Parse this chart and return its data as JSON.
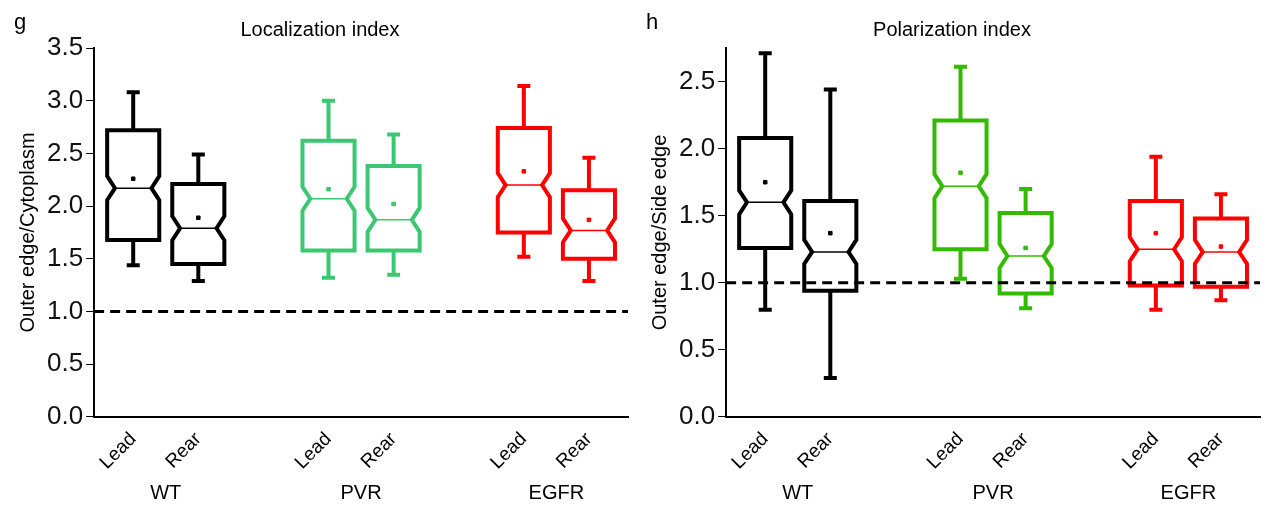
{
  "chart_data": [
    {
      "type": "box",
      "title": "Localization index",
      "ylabel": "Outer edge/Cytoplasm",
      "annotations": [
        "g",
        "WT",
        "PVR",
        "EGFR"
      ],
      "categories": [
        "Lead",
        "Rear",
        "Lead",
        "Rear",
        "Lead",
        "Rear"
      ],
      "colors": [
        "#000000",
        "#000000",
        "#3cc872",
        "#3cc872",
        "#ff0000",
        "#ff0000"
      ],
      "boxes": [
        {
          "low": 1.44,
          "q1": 1.68,
          "median": 2.17,
          "q3": 2.72,
          "high": 3.08,
          "mean": 2.26
        },
        {
          "low": 1.29,
          "q1": 1.45,
          "median": 1.79,
          "q3": 2.21,
          "high": 2.49,
          "mean": 1.89
        },
        {
          "low": 1.32,
          "q1": 1.58,
          "median": 2.07,
          "q3": 2.62,
          "high": 3.0,
          "mean": 2.16
        },
        {
          "low": 1.35,
          "q1": 1.58,
          "median": 1.87,
          "q3": 2.38,
          "high": 2.68,
          "mean": 2.02
        },
        {
          "low": 1.52,
          "q1": 1.75,
          "median": 2.2,
          "q3": 2.74,
          "high": 3.14,
          "mean": 2.33
        },
        {
          "low": 1.29,
          "q1": 1.5,
          "median": 1.77,
          "q3": 2.15,
          "high": 2.46,
          "mean": 1.87
        }
      ],
      "ylim": [
        0,
        3.5
      ],
      "yticks": [
        {
          "value": 0,
          "label": "0.0"
        },
        0.5,
        {
          "value": 1,
          "label": "1.0"
        },
        1.5,
        {
          "value": 2,
          "label": "2.0"
        },
        2.5,
        {
          "value": 3,
          "label": "3.0"
        },
        3.5
      ],
      "ref_lines": [
        {
          "axis": "y",
          "value": 1,
          "color": "#000000",
          "line_style": "dashed"
        }
      ],
      "grid": false,
      "legend": false,
      "marker": "square"
    },
    {
      "type": "box",
      "title": "Polarization index",
      "ylabel": "Outer edge/Side edge",
      "annotations": [
        "h",
        "WT",
        "PVR",
        "EGFR"
      ],
      "categories": [
        "Lead",
        "Rear",
        "Lead",
        "Rear",
        "Lead",
        "Rear"
      ],
      "colors": [
        "#000000",
        "#000000",
        "#33bb00",
        "#33bb00",
        "#ff0000",
        "#ff0000"
      ],
      "boxes": [
        {
          "low": 0.8,
          "q1": 1.26,
          "median": 1.6,
          "q3": 2.08,
          "high": 2.71,
          "mean": 1.75
        },
        {
          "low": 0.29,
          "q1": 0.94,
          "median": 1.23,
          "q3": 1.61,
          "high": 2.44,
          "mean": 1.37
        },
        {
          "low": 1.03,
          "q1": 1.25,
          "median": 1.72,
          "q3": 2.21,
          "high": 2.61,
          "mean": 1.82
        },
        {
          "low": 0.81,
          "q1": 0.92,
          "median": 1.2,
          "q3": 1.52,
          "high": 1.7,
          "mean": 1.26
        },
        {
          "low": 0.8,
          "q1": 0.98,
          "median": 1.25,
          "q3": 1.61,
          "high": 1.94,
          "mean": 1.37
        },
        {
          "low": 0.87,
          "q1": 0.97,
          "median": 1.23,
          "q3": 1.48,
          "high": 1.66,
          "mean": 1.27
        }
      ],
      "ylim": [
        0,
        2.75
      ],
      "yticks": [
        {
          "value": 0,
          "label": "0.0"
        },
        0.5,
        {
          "value": 1,
          "label": "1.0"
        },
        1.5,
        {
          "value": 2,
          "label": "2.0"
        },
        2.5
      ],
      "ref_lines": [
        {
          "axis": "y",
          "value": 1,
          "color": "#000000",
          "line_style": "dashed"
        }
      ],
      "grid": false,
      "legend": false,
      "marker": "square"
    }
  ]
}
